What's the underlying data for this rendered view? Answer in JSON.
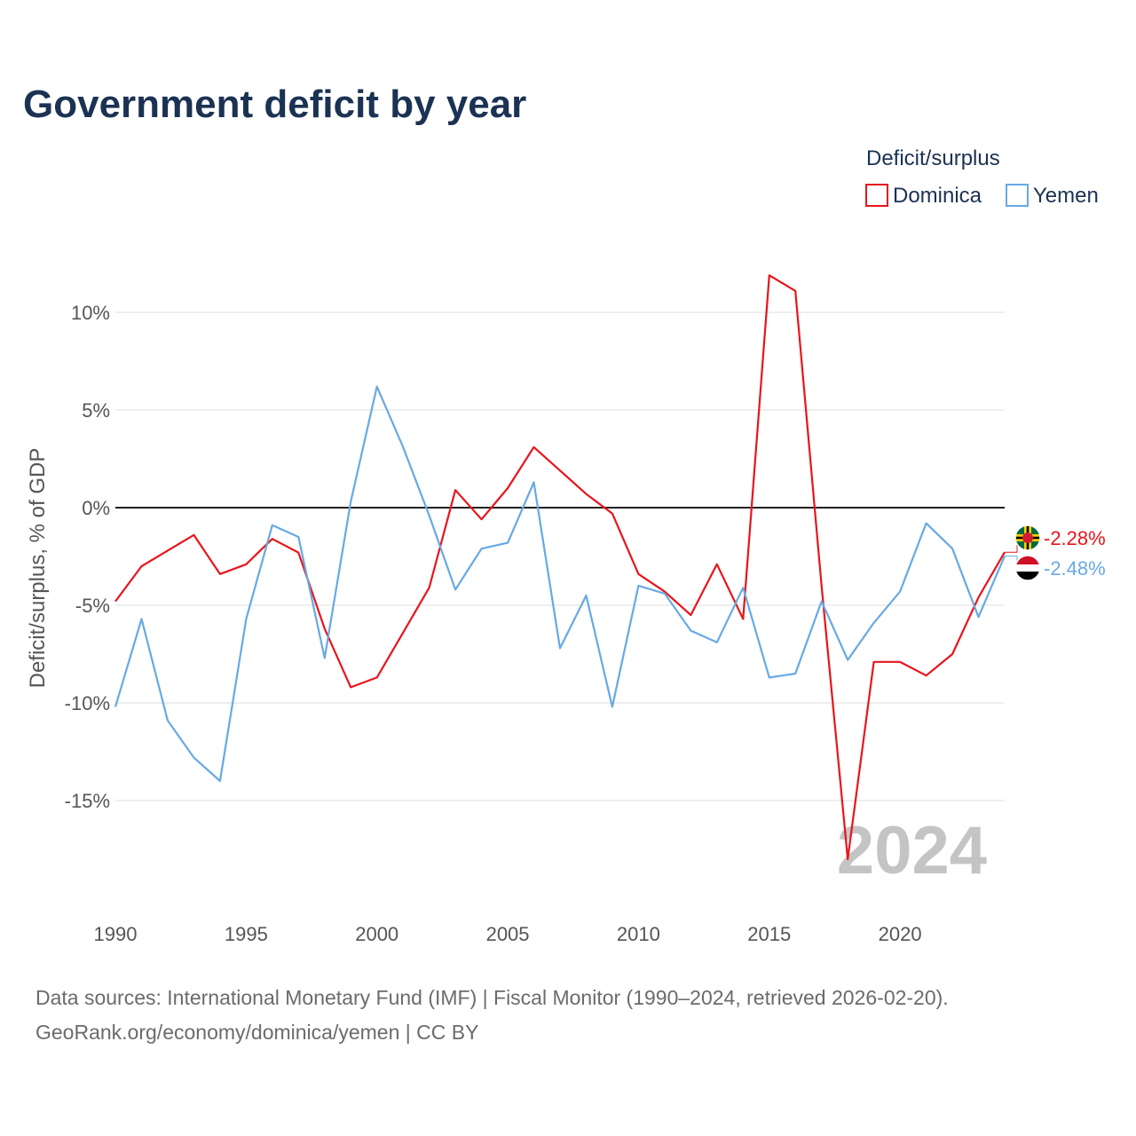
{
  "title": "Government deficit by year",
  "legend": {
    "title": "Deficit/surplus",
    "items": [
      {
        "name": "Dominica",
        "color": "#e8141c"
      },
      {
        "name": "Yemen",
        "color": "#67a9e4"
      }
    ]
  },
  "year_watermark": "2024",
  "source_line1": "Data sources: International Monetary Fund (IMF) | Fiscal Monitor (1990–2024, retrieved 2026-02-20).",
  "source_line2": "GeoRank.org/economy/dominica/yemen | CC BY",
  "chart_data": {
    "type": "line",
    "title": "Government deficit by year",
    "xlabel": "",
    "ylabel": "Deficit/surplus, % of GDP",
    "xlim": [
      1990,
      2024
    ],
    "ylim": [
      -19.5,
      13
    ],
    "x_ticks": [
      1990,
      1995,
      2000,
      2005,
      2010,
      2015,
      2020
    ],
    "x_tick_labels": [
      "1990",
      "1995",
      "2000",
      "2005",
      "2010",
      "2015",
      "2020"
    ],
    "y_ticks": [
      10,
      5,
      0,
      -5,
      -10,
      -15
    ],
    "y_tick_labels": [
      "10%",
      "5%",
      "0%",
      "-5%",
      "-10%",
      "-15%"
    ],
    "grid": true,
    "x": [
      1990,
      1991,
      1992,
      1993,
      1994,
      1995,
      1996,
      1997,
      1998,
      1999,
      2000,
      2001,
      2002,
      2003,
      2004,
      2005,
      2006,
      2007,
      2008,
      2009,
      2010,
      2011,
      2012,
      2013,
      2014,
      2015,
      2016,
      2017,
      2018,
      2019,
      2020,
      2021,
      2022,
      2023,
      2024
    ],
    "series": [
      {
        "name": "Dominica",
        "color": "#e8141c",
        "end_label": "-2.28%",
        "values": [
          -4.8,
          -3.0,
          -2.2,
          -1.4,
          -3.4,
          -2.9,
          -1.6,
          -2.3,
          -6.2,
          -9.2,
          -8.7,
          -6.4,
          -4.1,
          0.9,
          -0.6,
          1.0,
          3.1,
          1.9,
          0.7,
          -0.3,
          -3.4,
          -4.3,
          -5.5,
          -2.9,
          -5.7,
          11.9,
          11.1,
          -4.0,
          -18.0,
          -7.9,
          -7.9,
          -8.6,
          -7.5,
          -4.6,
          -2.28
        ]
      },
      {
        "name": "Yemen",
        "color": "#67a9e4",
        "end_label": "-2.48%",
        "values": [
          -10.2,
          -5.7,
          -10.9,
          -12.8,
          -14.0,
          -5.7,
          -0.9,
          -1.5,
          -7.7,
          0.3,
          6.2,
          3.1,
          -0.4,
          -4.2,
          -2.1,
          -1.8,
          1.3,
          -7.2,
          -4.5,
          -10.2,
          -4.0,
          -4.4,
          -6.3,
          -6.9,
          -4.1,
          -8.7,
          -8.5,
          -4.8,
          -7.8,
          -5.9,
          -4.3,
          -0.8,
          -2.1,
          -5.6,
          -2.48
        ]
      }
    ]
  }
}
